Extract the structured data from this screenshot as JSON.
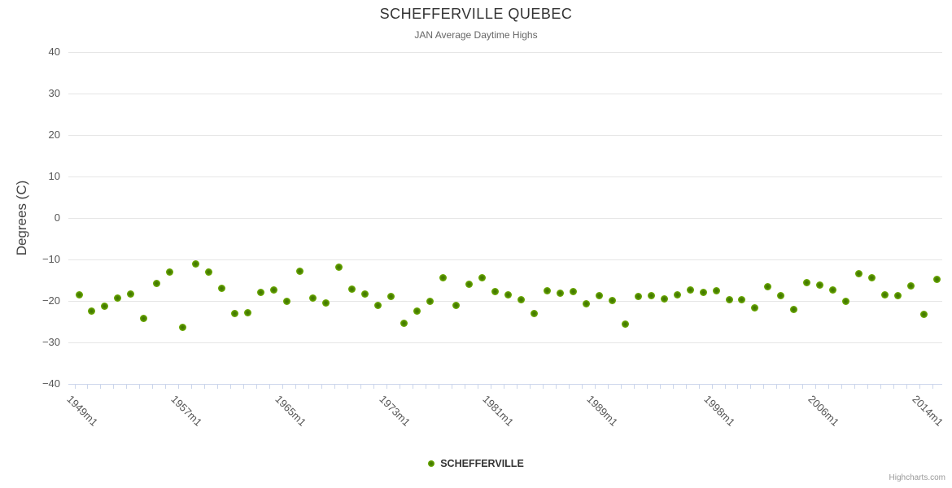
{
  "title": "SCHEFFERVILLE QUEBEC",
  "subtitle": "JAN Average Daytime Highs",
  "y_axis": {
    "title": "Degrees (C)",
    "tick_values": [
      40,
      30,
      20,
      10,
      0,
      -10,
      -20,
      -30,
      -40
    ],
    "tick_labels": [
      "40",
      "30",
      "20",
      "10",
      "0",
      "−10",
      "−20",
      "−30",
      "−40"
    ]
  },
  "x_axis": {
    "tick_labels": [
      "1949m1",
      "1957m1",
      "1965m1",
      "1973m1",
      "1981m1",
      "1989m1",
      "1998m1",
      "2006m1",
      "2014m1"
    ]
  },
  "legend": {
    "label": "SCHEFFERVILLE"
  },
  "credit": "Highcharts.com",
  "colors": {
    "marker_edge": "#86c017",
    "marker_center": "#3e7200",
    "gridline": "#e6e6e6",
    "axis_line": "#ccd6eb",
    "title_text": "#333333",
    "subtitle_text": "#666666",
    "tick_text": "#555555",
    "legend_text": "#333333",
    "credit_text": "#999999",
    "background": "#ffffff"
  },
  "chart_data": {
    "type": "scatter",
    "title": "SCHEFFERVILLE QUEBEC",
    "subtitle": "JAN Average Daytime Highs",
    "xlabel": "",
    "ylabel": "Degrees (C)",
    "ylim": [
      -40,
      40
    ],
    "xlim": [
      1948.2,
      2015.4
    ],
    "grid": "horizontal-only",
    "legend_position": "bottom-center",
    "x_tick_step_years": 1,
    "labeled_x_ticks": [
      "1949m1",
      "1957m1",
      "1965m1",
      "1973m1",
      "1981m1",
      "1989m1",
      "1998m1",
      "2006m1",
      "2014m1"
    ],
    "series": [
      {
        "name": "SCHEFFERVILLE",
        "x": [
          1949,
          1950,
          1951,
          1952,
          1953,
          1954,
          1955,
          1956,
          1957,
          1958,
          1959,
          1960,
          1961,
          1962,
          1963,
          1964,
          1965,
          1966,
          1967,
          1968,
          1969,
          1970,
          1971,
          1972,
          1973,
          1974,
          1975,
          1976,
          1977,
          1978,
          1979,
          1980,
          1981,
          1982,
          1983,
          1984,
          1985,
          1986,
          1987,
          1988,
          1989,
          1990,
          1991,
          1992,
          1993,
          1994,
          1995,
          1996,
          1997,
          1998,
          1999,
          2000,
          2001,
          2002,
          2003,
          2004,
          2005,
          2006,
          2007,
          2008,
          2009,
          2010,
          2011,
          2012,
          2013,
          2014,
          2015
        ],
        "y": [
          -18.6,
          -22.5,
          -21.2,
          -19.3,
          -18.4,
          -24.2,
          -15.7,
          -13.1,
          -26.3,
          -11.1,
          -13.0,
          -17.0,
          -23.0,
          -22.9,
          -18.0,
          -17.4,
          -20.0,
          -12.9,
          -19.3,
          -20.4,
          -11.8,
          -17.2,
          -18.3,
          -21.0,
          -18.9,
          -25.3,
          -22.5,
          -20.0,
          -14.4,
          -21.0,
          -15.9,
          -14.4,
          -17.8,
          -18.6,
          -19.7,
          -23.1,
          -17.6,
          -18.2,
          -17.8,
          -20.7,
          -18.7,
          -19.9,
          -25.5,
          -19.0,
          -18.7,
          -19.5,
          -18.6,
          -17.4,
          -18.0,
          -17.6,
          -19.7,
          -19.7,
          -21.6,
          -16.6,
          -18.8,
          -22.1,
          -15.6,
          -16.2,
          -17.4,
          -20.1,
          -13.4,
          -14.4,
          -18.6,
          -18.7,
          -16.4,
          -23.2,
          -14.9
        ]
      }
    ]
  }
}
